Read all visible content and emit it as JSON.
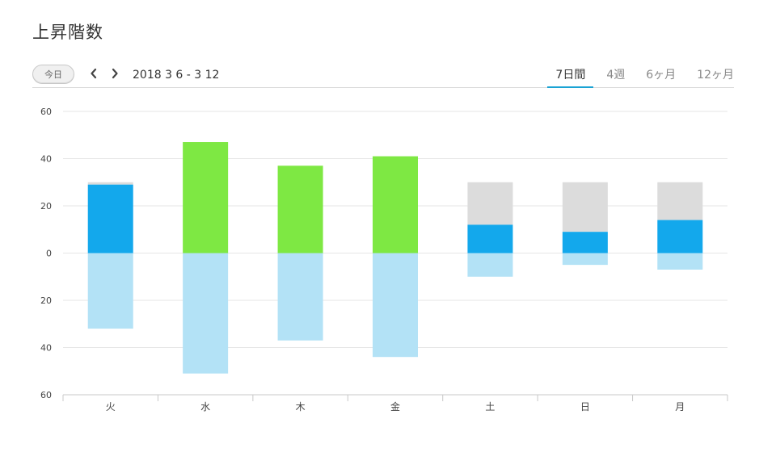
{
  "page": {
    "title": "上昇階数"
  },
  "toolbar": {
    "today_label": "今日",
    "prev_icon": "chevron-left-icon",
    "next_icon": "chevron-right-icon",
    "date_range": "2018 3 6 - 3 12",
    "tabs": [
      {
        "label": "7日間",
        "active": true
      },
      {
        "label": "4週",
        "active": false
      },
      {
        "label": "6ヶ月",
        "active": false
      },
      {
        "label": "12ヶ月",
        "active": false
      }
    ]
  },
  "colors": {
    "goal_reached": "#7ee843",
    "climbed": "#13a8ec",
    "goal_remaining": "#dcdcdc",
    "descended": "#b3e2f6",
    "tab_underline": "#1aa3d4"
  },
  "chart_data": {
    "type": "bar",
    "categories": [
      "火",
      "水",
      "木",
      "金",
      "土",
      "日",
      "月"
    ],
    "ylim": [
      -60,
      60
    ],
    "yticks": [
      60,
      40,
      20,
      0,
      -20,
      -40,
      -60
    ],
    "ytick_labels": [
      "60",
      "40",
      "20",
      "0",
      "20",
      "40",
      "60"
    ],
    "goal": 30,
    "series": [
      {
        "values": [
          29,
          47,
          37,
          41,
          12,
          9,
          14
        ]
      },
      {
        "values": [
          32,
          51,
          37,
          44,
          10,
          5,
          7
        ]
      }
    ],
    "grid": true
  }
}
